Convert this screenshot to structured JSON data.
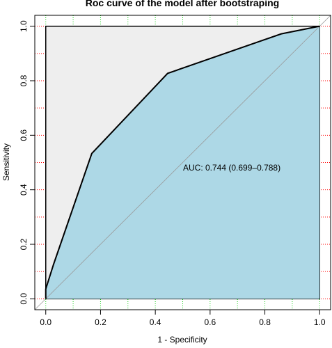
{
  "chart_data": {
    "type": "roc",
    "title": "Roc curve of the model after bootstraping",
    "xlabel": "1 - Specificity",
    "ylabel": "Sensitivity",
    "annotation": "AUC: 0.744 (0.699–0.788)",
    "x": [
      0,
      0,
      0.028,
      0.168,
      0.445,
      0.86,
      1
    ],
    "values": [
      0,
      0.036,
      0.125,
      0.533,
      0.827,
      0.972,
      1
    ],
    "color": "#000000",
    "auc_fill": "#add8e6",
    "max_auc_fill": "#eeeeee",
    "xlim": [
      -0.04,
      1.04
    ],
    "ylim": [
      -0.04,
      1.04
    ],
    "xticks": [
      {
        "value": 0,
        "label": "0.0"
      },
      {
        "value": 0.2,
        "label": "0.2"
      },
      {
        "value": 0.4,
        "label": "0.4"
      },
      {
        "value": 0.6,
        "label": "0.6"
      },
      {
        "value": 0.8,
        "label": "0.8"
      },
      {
        "value": 1,
        "label": "1.0"
      }
    ],
    "yticks": [
      {
        "value": 0,
        "label": "0.0"
      },
      {
        "value": 0.2,
        "label": "0.2"
      },
      {
        "value": 0.4,
        "label": "0.4"
      },
      {
        "value": 0.6,
        "label": "0.6"
      },
      {
        "value": 0.8,
        "label": "0.8"
      },
      {
        "value": 1,
        "label": "1.0"
      }
    ],
    "grid_xticks": [
      0,
      0.1,
      0.2,
      0.3,
      0.4,
      0.5,
      0.6,
      0.7,
      0.8,
      0.9,
      1
    ],
    "grid_yticks": [
      0,
      0.1,
      0.2,
      0.3,
      0.4,
      0.5,
      0.6,
      0.7,
      0.8,
      0.9,
      1
    ],
    "grid_x_color": "#00cc00",
    "grid_y_color": "#ff0000"
  }
}
